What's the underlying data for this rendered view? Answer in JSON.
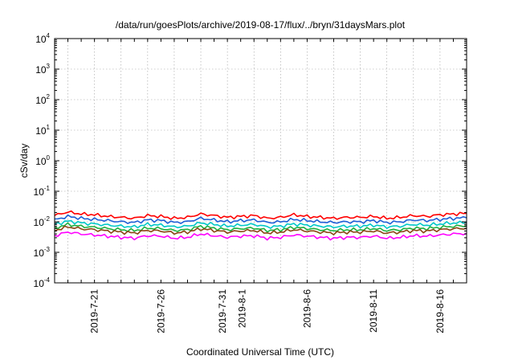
{
  "chart_data": {
    "type": "line",
    "title": "/data/run/goesPlots/archive/2019-08-17/flux/../bryn/31daysMars.plot",
    "xlabel": "Coordinated Universal Time (UTC)",
    "ylabel": "cSv/day",
    "y_scale": "log",
    "ylim": [
      0.0001,
      10000
    ],
    "y_ticks": [
      {
        "base": "10",
        "exp": "-4",
        "value": 0.0001
      },
      {
        "base": "10",
        "exp": "-3",
        "value": 0.001
      },
      {
        "base": "10",
        "exp": "-2",
        "value": 0.01
      },
      {
        "base": "10",
        "exp": "-1",
        "value": 0.1
      },
      {
        "base": "10",
        "exp": "0",
        "value": 1
      },
      {
        "base": "10",
        "exp": "1",
        "value": 10
      },
      {
        "base": "10",
        "exp": "2",
        "value": 100
      },
      {
        "base": "10",
        "exp": "3",
        "value": 1000
      },
      {
        "base": "10",
        "exp": "4",
        "value": 10000
      }
    ],
    "xlim": [
      "2019-07-18",
      "2019-08-18"
    ],
    "x_ticks": [
      {
        "label": "2019-7-21",
        "date": "2019-07-21"
      },
      {
        "label": "2019-7-26",
        "date": "2019-07-26"
      },
      {
        "label": "2019-7-31",
        "date": "2019-07-31"
      },
      {
        "label": "2019-8-1",
        "date": "2019-08-01"
      },
      {
        "label": "2019-8-6",
        "date": "2019-08-06"
      },
      {
        "label": "2019-8-11",
        "date": "2019-08-11"
      },
      {
        "label": "2019-8-16",
        "date": "2019-08-16"
      }
    ],
    "x_grid_dates": [
      "2019-07-19",
      "2019-07-21",
      "2019-07-23",
      "2019-07-25",
      "2019-07-27",
      "2019-07-29",
      "2019-07-31",
      "2019-08-02",
      "2019-08-04",
      "2019-08-06",
      "2019-08-08",
      "2019-08-10",
      "2019-08-12",
      "2019-08-14",
      "2019-08-16"
    ],
    "grid": true,
    "legend": "none",
    "x_dates": [
      "2019-07-18",
      "2019-07-19",
      "2019-07-20",
      "2019-07-21",
      "2019-07-22",
      "2019-07-23",
      "2019-07-24",
      "2019-07-25",
      "2019-07-26",
      "2019-07-27",
      "2019-07-28",
      "2019-07-29",
      "2019-07-30",
      "2019-07-31",
      "2019-08-01",
      "2019-08-02",
      "2019-08-03",
      "2019-08-04",
      "2019-08-05",
      "2019-08-06",
      "2019-08-07",
      "2019-08-08",
      "2019-08-09",
      "2019-08-10",
      "2019-08-11",
      "2019-08-12",
      "2019-08-13",
      "2019-08-14",
      "2019-08-15",
      "2019-08-16",
      "2019-08-17",
      "2019-08-18"
    ],
    "series": [
      {
        "color": "#ff0000",
        "values": [
          0.016,
          0.021,
          0.018,
          0.017,
          0.015,
          0.014,
          0.013,
          0.016,
          0.015,
          0.013,
          0.014,
          0.018,
          0.016,
          0.014,
          0.015,
          0.016,
          0.013,
          0.014,
          0.017,
          0.015,
          0.014,
          0.013,
          0.014,
          0.014,
          0.015,
          0.013,
          0.014,
          0.016,
          0.015,
          0.017,
          0.018,
          0.019
        ]
      },
      {
        "color": "#1e5fd6",
        "values": [
          0.0115,
          0.015,
          0.013,
          0.012,
          0.011,
          0.01,
          0.0095,
          0.0115,
          0.011,
          0.0095,
          0.01,
          0.013,
          0.0115,
          0.01,
          0.011,
          0.0115,
          0.0095,
          0.01,
          0.012,
          0.011,
          0.01,
          0.0095,
          0.01,
          0.01,
          0.011,
          0.0095,
          0.01,
          0.0115,
          0.011,
          0.012,
          0.013,
          0.0135
        ]
      },
      {
        "color": "#00c8c8",
        "values": [
          0.0082,
          0.0105,
          0.0092,
          0.0085,
          0.0078,
          0.0072,
          0.0068,
          0.0082,
          0.0078,
          0.0068,
          0.0072,
          0.0092,
          0.0082,
          0.0072,
          0.0078,
          0.0082,
          0.0068,
          0.0072,
          0.0085,
          0.0078,
          0.0072,
          0.0068,
          0.0072,
          0.0072,
          0.0078,
          0.0068,
          0.0072,
          0.0082,
          0.0078,
          0.0085,
          0.0092,
          0.0095
        ]
      },
      {
        "color": "#20b040",
        "values": [
          0.0062,
          0.0082,
          0.0071,
          0.0066,
          0.006,
          0.0055,
          0.0052,
          0.0062,
          0.006,
          0.0052,
          0.0055,
          0.0071,
          0.0062,
          0.0055,
          0.006,
          0.0062,
          0.0052,
          0.0055,
          0.0066,
          0.006,
          0.0055,
          0.0052,
          0.0055,
          0.0055,
          0.006,
          0.0052,
          0.0055,
          0.0062,
          0.006,
          0.0066,
          0.0071,
          0.0074
        ]
      },
      {
        "color": "#8b4513",
        "values": [
          0.0052,
          0.0068,
          0.0059,
          0.0055,
          0.005,
          0.0046,
          0.0043,
          0.0052,
          0.005,
          0.0043,
          0.0046,
          0.0059,
          0.0052,
          0.0046,
          0.005,
          0.0052,
          0.0043,
          0.0046,
          0.0055,
          0.005,
          0.0046,
          0.0043,
          0.0046,
          0.0046,
          0.005,
          0.0043,
          0.0046,
          0.0052,
          0.005,
          0.0055,
          0.0059,
          0.0061
        ]
      },
      {
        "color": "#ff00ff",
        "values": [
          0.0035,
          0.0046,
          0.004,
          0.0037,
          0.0034,
          0.0031,
          0.0029,
          0.0035,
          0.0034,
          0.0029,
          0.0031,
          0.004,
          0.0035,
          0.0031,
          0.0034,
          0.0035,
          0.0029,
          0.0031,
          0.0037,
          0.0034,
          0.0031,
          0.0029,
          0.0031,
          0.0031,
          0.0034,
          0.0029,
          0.0031,
          0.0035,
          0.0034,
          0.0037,
          0.004,
          0.0042
        ]
      }
    ]
  }
}
